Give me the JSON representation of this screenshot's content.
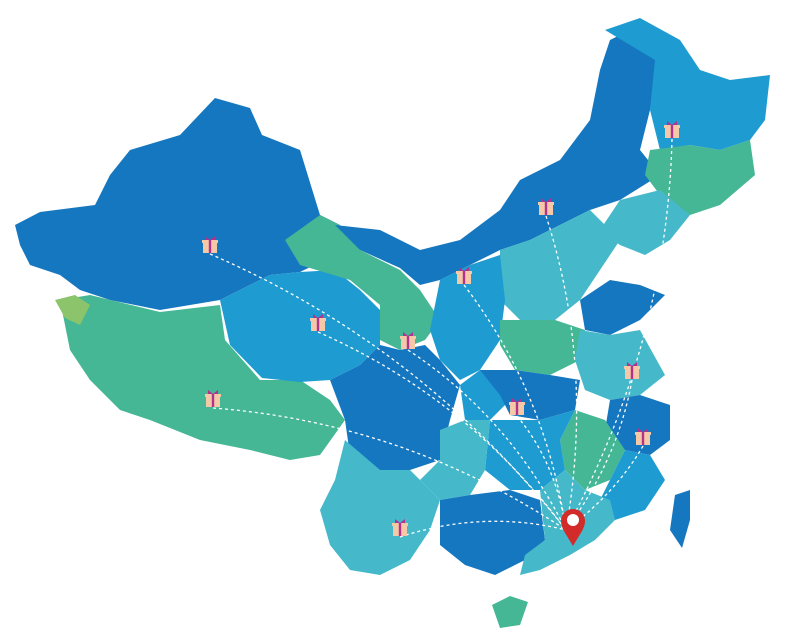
{
  "map": {
    "colors": {
      "dark_blue": "#1577c0",
      "mid_blue": "#1e9bd1",
      "teal": "#45b9c9",
      "green": "#45b795",
      "light_green": "#8cc46b",
      "route_line": "#ffffff",
      "pin": "#d32a2a",
      "gift_box": "#f5c9a8",
      "gift_ribbon": "#b0338f"
    },
    "destination_icon": "location-pin-icon",
    "origin_icon": "gift-box-icon",
    "origin_count": 11
  }
}
